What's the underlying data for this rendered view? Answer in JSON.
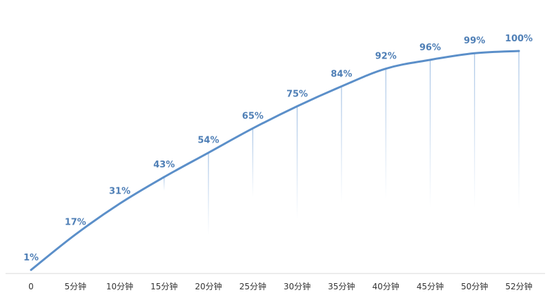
{
  "chart_data": {
    "type": "line",
    "categories": [
      "0",
      "5分钟",
      "10分钟",
      "15分钟",
      "20分钟",
      "25分钟",
      "30分钟",
      "35分钟",
      "40分钟",
      "45分钟",
      "50分钟",
      "52分钟"
    ],
    "series": [
      {
        "values": [
          1,
          17,
          31,
          43,
          54,
          65,
          75,
          84,
          92,
          96,
          99,
          100
        ],
        "data_labels": [
          "1%",
          "17%",
          "31%",
          "43%",
          "54%",
          "65%",
          "75%",
          "84%",
          "92%",
          "96%",
          "99%",
          "100%"
        ]
      }
    ],
    "title": "",
    "xlabel": "",
    "ylabel": "",
    "ylim": [
      0,
      100
    ],
    "grid": false,
    "legend": "none",
    "drop_lines": true,
    "colors": {
      "line": "#5b8fc9",
      "label": "#4f7fb6",
      "drop_line": "#9dbde2",
      "axis": "#d9d9d9",
      "tick_text": "#333333"
    }
  }
}
